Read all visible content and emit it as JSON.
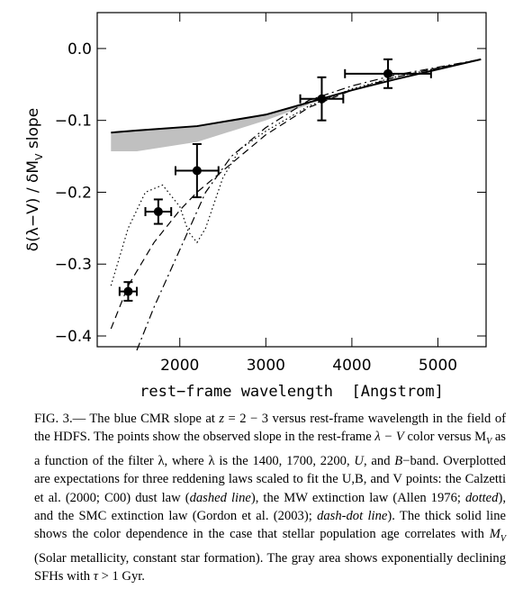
{
  "chart_data": {
    "type": "scatter",
    "xlabel": "rest−frame wavelength  [Angstrom]",
    "ylabel": [
      "δ(λ−V) / δM",
      "V",
      " slope"
    ],
    "xlim": [
      1040,
      5560
    ],
    "ylim": [
      -0.415,
      0.05
    ],
    "xticks": [
      2000,
      3000,
      4000,
      5000
    ],
    "yticks": [
      {
        "value": 0,
        "label": "0.0"
      },
      {
        "value": -0.1,
        "label": "−0.1"
      },
      {
        "value": -0.2,
        "label": "−0.2"
      },
      {
        "value": -0.3,
        "label": "−0.3"
      },
      {
        "value": -0.4,
        "label": "−0.4"
      }
    ],
    "area": {
      "color": "#c0c0c0",
      "x": [
        1200,
        1500,
        2200,
        3000,
        3500
      ],
      "upper": [
        -0.117,
        -0.114,
        -0.108,
        -0.092,
        -0.075
      ],
      "lower": [
        -0.143,
        -0.143,
        -0.13,
        -0.1,
        -0.078
      ]
    },
    "series": [
      {
        "color": "#000",
        "dash": "solid",
        "width": 2,
        "x": [
          1200,
          1500,
          2200,
          3000,
          3500,
          4000,
          4500,
          5000,
          5500
        ],
        "values": [
          -0.117,
          -0.114,
          -0.108,
          -0.092,
          -0.075,
          -0.058,
          -0.043,
          -0.029,
          -0.015
        ]
      },
      {
        "color": "#000",
        "dash": "dashed",
        "width": 1.2,
        "x": [
          1200,
          1400,
          1700,
          2000,
          2200,
          2500,
          2800,
          3000,
          3500,
          4000,
          4500,
          5000,
          5500
        ],
        "values": [
          -0.39,
          -0.33,
          -0.27,
          -0.225,
          -0.2,
          -0.17,
          -0.14,
          -0.12,
          -0.082,
          -0.058,
          -0.04,
          -0.027,
          -0.015
        ]
      },
      {
        "color": "#000",
        "dash": "dotted",
        "width": 1.2,
        "x": [
          1200,
          1400,
          1600,
          1800,
          2000,
          2100,
          2200,
          2300,
          2500,
          2700,
          3000,
          3500,
          4000,
          4500,
          5000,
          5500
        ],
        "values": [
          -0.33,
          -0.25,
          -0.2,
          -0.19,
          -0.22,
          -0.255,
          -0.27,
          -0.25,
          -0.18,
          -0.14,
          -0.115,
          -0.08,
          -0.056,
          -0.04,
          -0.027,
          -0.015
        ]
      },
      {
        "color": "#000",
        "dash": "dashdot",
        "width": 1.2,
        "x": [
          1500,
          1700,
          2000,
          2300,
          2600,
          3000,
          3500,
          4000,
          4500,
          5000,
          5500
        ],
        "values": [
          -0.42,
          -0.36,
          -0.28,
          -0.2,
          -0.15,
          -0.11,
          -0.072,
          -0.052,
          -0.037,
          -0.026,
          -0.015
        ]
      }
    ],
    "points": {
      "color": "#000",
      "x": [
        1400,
        1750,
        2200,
        3650,
        4420
      ],
      "values": [
        -0.338,
        -0.227,
        -0.17,
        -0.07,
        -0.035
      ],
      "xerr": [
        100,
        150,
        250,
        250,
        500
      ],
      "yerr": [
        0.013,
        0.017,
        0.037,
        0.03,
        0.02
      ]
    }
  },
  "caption": [
    {
      "text": "FIG. 3.— The blue CMR slope at "
    },
    {
      "text": "z",
      "style": "italic"
    },
    {
      "text": " = 2 − 3 versus rest-frame wavelength in the field of the HDFS. The points show the observed slope in the rest-frame "
    },
    {
      "text": "λ − V",
      "style": "italic"
    },
    {
      "text": " color versus M"
    },
    {
      "text": "V",
      "style": "sub"
    },
    {
      "text": " as a function of the filter λ, where λ is the 1400, 1700, 2200, "
    },
    {
      "text": "U",
      "style": "italic"
    },
    {
      "text": ", and "
    },
    {
      "text": "B",
      "style": "italic"
    },
    {
      "text": "−band. Overplotted are expectations for three reddening laws scaled to fit the U,B, and V points: the Calzetti et al. (2000; C00) dust law ("
    },
    {
      "text": "dashed line",
      "style": "italic"
    },
    {
      "text": "), the MW extinction law (Allen 1976; "
    },
    {
      "text": "dotted",
      "style": "italic"
    },
    {
      "text": "), and the SMC extinction law (Gordon et al. (2003); "
    },
    {
      "text": "dash-dot line",
      "style": "italic"
    },
    {
      "text": "). The thick solid line shows the color dependence in the case that stellar population age correlates with "
    },
    {
      "text": "M",
      "style": "italic"
    },
    {
      "text": "V",
      "style": "sub"
    },
    {
      "text": " (Solar metallicity, constant star formation). The gray area shows exponentially declining SFHs with "
    },
    {
      "text": "τ",
      "style": "italic"
    },
    {
      "text": " > 1 Gyr."
    }
  ]
}
